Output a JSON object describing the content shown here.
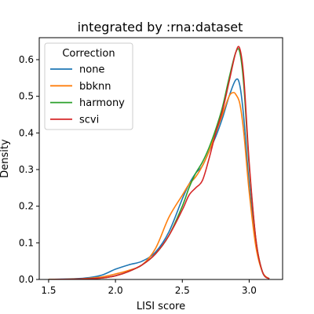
{
  "chart_data": {
    "type": "line",
    "title": "integrated by :rna:dataset",
    "xlabel": "LISI score",
    "ylabel": "Density",
    "xlim": [
      1.43,
      3.25
    ],
    "ylim": [
      0,
      0.66
    ],
    "xticks": [
      1.5,
      2.0,
      2.5,
      3.0
    ],
    "xtick_labels": [
      "1.5",
      "2.0",
      "2.5",
      "3.0"
    ],
    "yticks": [
      0.0,
      0.1,
      0.2,
      0.3,
      0.4,
      0.5,
      0.6
    ],
    "ytick_labels": [
      "0.0",
      "0.1",
      "0.2",
      "0.3",
      "0.4",
      "0.5",
      "0.6"
    ],
    "grid": false,
    "legend": {
      "title": "Correction",
      "position": "top-left"
    },
    "series": [
      {
        "name": "none",
        "color": "#1f77b4",
        "x": [
          1.5,
          1.7,
          1.8,
          1.9,
          2.0,
          2.1,
          2.2,
          2.3,
          2.4,
          2.5,
          2.55,
          2.6,
          2.65,
          2.7,
          2.75,
          2.8,
          2.85,
          2.9,
          2.93,
          2.96,
          3.0,
          3.05,
          3.1,
          3.15
        ],
        "y": [
          0.0,
          0.002,
          0.005,
          0.012,
          0.028,
          0.04,
          0.05,
          0.075,
          0.13,
          0.22,
          0.26,
          0.29,
          0.31,
          0.35,
          0.39,
          0.44,
          0.5,
          0.545,
          0.53,
          0.44,
          0.26,
          0.1,
          0.02,
          0.002
        ]
      },
      {
        "name": "bbknn",
        "color": "#ff7f0e",
        "x": [
          1.5,
          1.7,
          1.8,
          1.9,
          2.0,
          2.1,
          2.2,
          2.3,
          2.4,
          2.5,
          2.55,
          2.6,
          2.65,
          2.7,
          2.75,
          2.8,
          2.85,
          2.88,
          2.9,
          2.93,
          2.96,
          3.0,
          3.05,
          3.1,
          3.15
        ],
        "y": [
          0.0,
          0.001,
          0.003,
          0.007,
          0.015,
          0.025,
          0.04,
          0.085,
          0.17,
          0.23,
          0.26,
          0.28,
          0.31,
          0.35,
          0.4,
          0.45,
          0.5,
          0.51,
          0.505,
          0.48,
          0.4,
          0.24,
          0.09,
          0.02,
          0.002
        ]
      },
      {
        "name": "harmony",
        "color": "#2ca02c",
        "x": [
          1.5,
          1.7,
          1.8,
          1.9,
          2.0,
          2.1,
          2.2,
          2.3,
          2.4,
          2.5,
          2.55,
          2.6,
          2.65,
          2.7,
          2.75,
          2.8,
          2.85,
          2.9,
          2.93,
          2.96,
          3.0,
          3.05,
          3.1,
          3.15
        ],
        "y": [
          0.0,
          0.001,
          0.002,
          0.004,
          0.01,
          0.022,
          0.04,
          0.07,
          0.12,
          0.2,
          0.25,
          0.29,
          0.32,
          0.36,
          0.41,
          0.47,
          0.55,
          0.62,
          0.62,
          0.53,
          0.31,
          0.11,
          0.02,
          0.002
        ]
      },
      {
        "name": "scvi",
        "color": "#d62728",
        "x": [
          1.5,
          1.7,
          1.8,
          1.9,
          2.0,
          2.1,
          2.2,
          2.3,
          2.4,
          2.5,
          2.55,
          2.6,
          2.65,
          2.7,
          2.75,
          2.8,
          2.85,
          2.9,
          2.93,
          2.96,
          3.0,
          3.05,
          3.1,
          3.15
        ],
        "y": [
          0.0,
          0.001,
          0.002,
          0.004,
          0.01,
          0.022,
          0.04,
          0.07,
          0.12,
          0.19,
          0.23,
          0.25,
          0.27,
          0.33,
          0.4,
          0.46,
          0.54,
          0.62,
          0.63,
          0.55,
          0.32,
          0.11,
          0.02,
          0.002
        ]
      }
    ]
  }
}
